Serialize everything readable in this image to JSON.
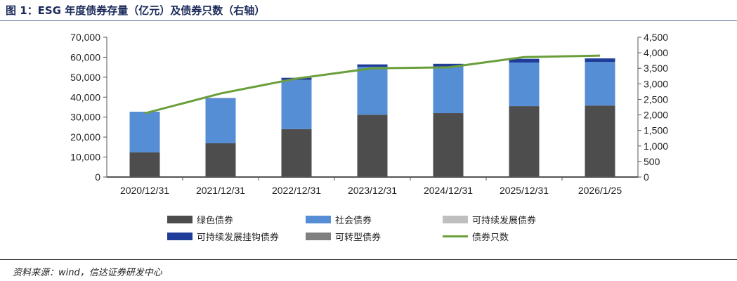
{
  "title": "图 1：ESG 年度债券存量（亿元）及债券只数（右轴）",
  "source": "资料来源：wind，信达证券研发中心",
  "chart_data": {
    "type": "bar+line",
    "categories": [
      "2020/12/31",
      "2021/12/31",
      "2022/12/31",
      "2023/12/31",
      "2024/12/31",
      "2025/12/31",
      "2026/1/25"
    ],
    "left_axis": {
      "ylim": [
        0,
        70000
      ],
      "ticks": [
        "0",
        "10,000",
        "20,000",
        "30,000",
        "40,000",
        "50,000",
        "60,000",
        "70,000"
      ]
    },
    "right_axis": {
      "ylim": [
        0,
        4500
      ],
      "ticks": [
        "0",
        "500",
        "1,000",
        "1,500",
        "2,000",
        "2,500",
        "3,000",
        "3,500",
        "4,000",
        "4,500"
      ]
    },
    "stacked_series": [
      {
        "name": "绿色债券",
        "color": "#4d4d4d",
        "values": [
          12400,
          16900,
          24000,
          31200,
          32000,
          35500,
          35800
        ]
      },
      {
        "name": "社会债券",
        "color": "#558ed5",
        "values": [
          20300,
          22400,
          24650,
          24000,
          23300,
          21800,
          21800
        ]
      },
      {
        "name": "可持续发展债券",
        "color": "#bfbfbf",
        "values": [
          0,
          0,
          0,
          0,
          0,
          0,
          0
        ]
      },
      {
        "name": "可持续发展挂钩债券",
        "color": "#1f3c99",
        "values": [
          0,
          200,
          1050,
          1200,
          1400,
          1900,
          1800
        ]
      },
      {
        "name": "可转型债券",
        "color": "#7f7f7f",
        "values": [
          0,
          0,
          0,
          0,
          0,
          0,
          0
        ]
      }
    ],
    "line_series": {
      "name": "债券只数",
      "color": "#6a9e3a",
      "axis": "right",
      "values": [
        2050,
        2690,
        3170,
        3500,
        3530,
        3860,
        3910
      ]
    },
    "legend_position": "bottom",
    "grid": false
  }
}
